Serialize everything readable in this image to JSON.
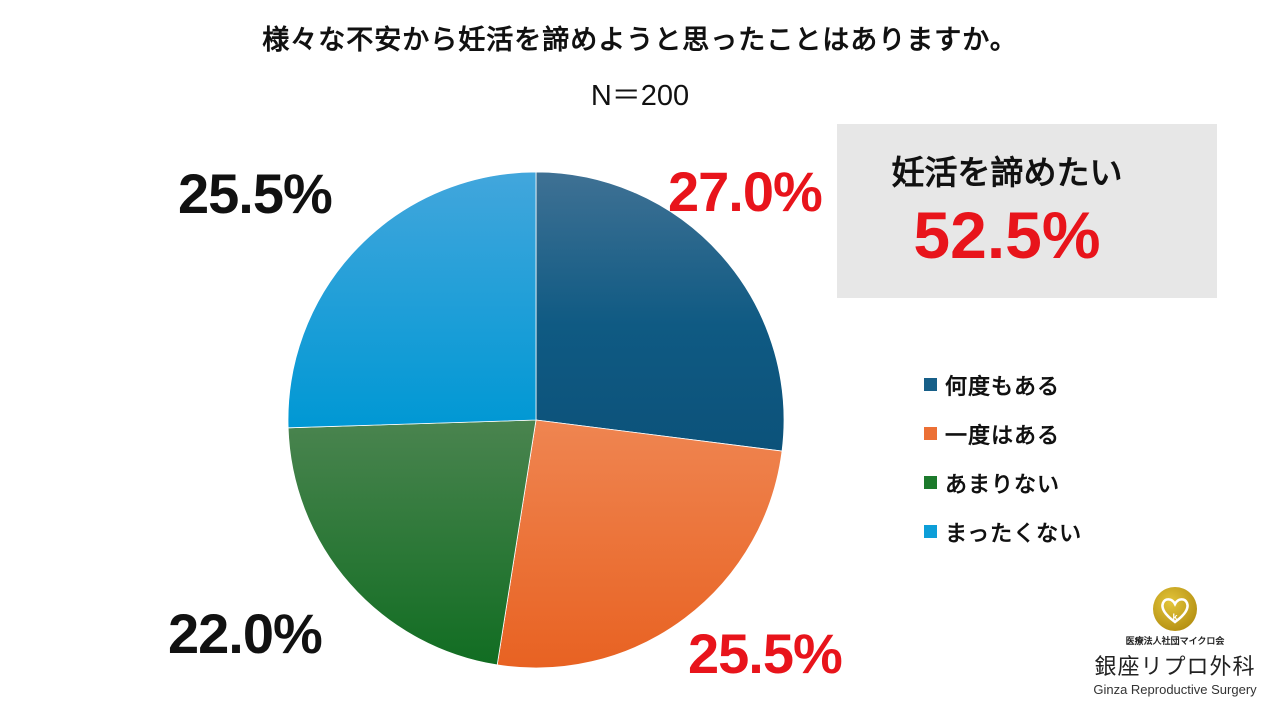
{
  "chart_data": {
    "type": "pie",
    "title": "様々な不安から妊活を諦めようと思ったことはありますか。",
    "subtitle": "N＝200",
    "sample_size": 200,
    "categories": [
      "何度もある",
      "一度はある",
      "あまりない",
      "まったくない"
    ],
    "values": [
      27.0,
      25.5,
      22.0,
      25.5
    ],
    "labels": [
      "27.0%",
      "25.5%",
      "22.0%",
      "25.5%"
    ],
    "colors": [
      "#175f88",
      "#ec7035",
      "#1c7a2c",
      "#0d9ed8"
    ],
    "label_colors": [
      "#e8141b",
      "#e8141b",
      "#111111",
      "#111111"
    ],
    "start_angle_deg": 0,
    "direction": "clockwise",
    "legend_position": "right",
    "annotation": {
      "label": "妊活を諦めたい",
      "value": "52.5%",
      "note_sum_of": [
        "何度もある",
        "一度はある"
      ]
    }
  },
  "header": {
    "title": "様々な不安から妊活を諦めようと思ったことはありますか。",
    "subtitle": "N＝200"
  },
  "summary": {
    "label": "妊活を諦めたい",
    "value": "52.5%",
    "value_color": "#e8141b",
    "background": "#e7e7e7"
  },
  "legend": {
    "items": [
      {
        "label": "何度もある",
        "color": "#175f88"
      },
      {
        "label": "一度はある",
        "color": "#ec7035"
      },
      {
        "label": "あまりない",
        "color": "#1c7a2c"
      },
      {
        "label": "まったくない",
        "color": "#0d9ed8"
      }
    ]
  },
  "slice_labels": {
    "often": "27.0%",
    "once": "25.5%",
    "rarely": "22.0%",
    "never": "25.5%"
  },
  "logo": {
    "corp": "医療法人社団マイクロ会",
    "name": "銀座リプロ外科",
    "name_en": "Ginza Reproductive Surgery"
  },
  "colors": {
    "highlight": "#e8141b",
    "text": "#111111",
    "logo_gold": "#c9a417"
  }
}
